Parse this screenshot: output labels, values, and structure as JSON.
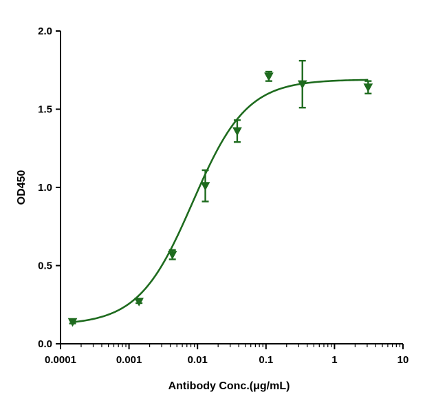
{
  "chart_data": {
    "type": "scatter",
    "title": "",
    "xlabel": "Antibody Conc.(μg/mL)",
    "ylabel": "OD450",
    "xscale": "log",
    "xlim": [
      0.0001,
      10
    ],
    "ylim": [
      0,
      2.0
    ],
    "x_ticks": [
      0.0001,
      0.001,
      0.01,
      0.1,
      1,
      10
    ],
    "x_tick_labels": [
      "0.0001",
      "0.001",
      "0.01",
      "0.1",
      "1",
      "10"
    ],
    "y_ticks": [
      0,
      0.5,
      1.0,
      1.5,
      2.0
    ],
    "y_tick_labels": [
      "0.0",
      "0.5",
      "1.0",
      "1.5",
      "2.0"
    ],
    "grid": false,
    "legend": "none",
    "color": "#1e6b1e",
    "marker": "triangle-down",
    "series": [
      {
        "x": [
          0.00015,
          0.0014,
          0.0043,
          0.013,
          0.038,
          0.11,
          0.34,
          3.1
        ],
        "y": [
          0.14,
          0.27,
          0.57,
          1.01,
          1.36,
          1.71,
          1.66,
          1.64
        ],
        "error": [
          0.01,
          0.01,
          0.03,
          0.1,
          0.07,
          0.03,
          0.15,
          0.04
        ]
      }
    ],
    "fit_curve": {
      "model": "four-parameter logistic",
      "bottom": 0.12,
      "top": 1.69,
      "ec50": 0.0085,
      "hill": 1.1
    }
  }
}
